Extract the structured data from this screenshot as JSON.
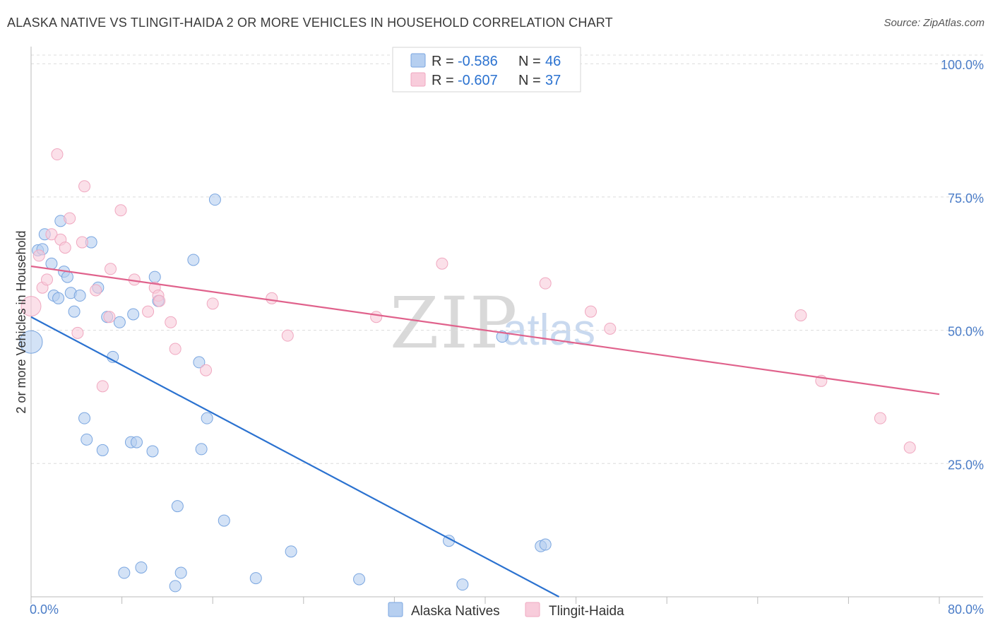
{
  "title": "ALASKA NATIVE VS TLINGIT-HAIDA 2 OR MORE VEHICLES IN HOUSEHOLD CORRELATION CHART",
  "source": "Source: ZipAtlas.com",
  "watermark": {
    "zip": "ZIP",
    "atlas": "atlas"
  },
  "chart_data": {
    "type": "scatter",
    "xlabel": "",
    "ylabel": "2 or more Vehicles in Household",
    "xlim": [
      0,
      80
    ],
    "ylim": [
      0,
      104
    ],
    "x_tick_labels": [
      {
        "value": 0,
        "label": "0.0%"
      },
      {
        "value": 80,
        "label": "80.0%"
      }
    ],
    "y_tick_labels": [
      {
        "value": 25,
        "label": "25.0%"
      },
      {
        "value": 50,
        "label": "50.0%"
      },
      {
        "value": 75,
        "label": "75.0%"
      },
      {
        "value": 100,
        "label": "100.0%"
      }
    ],
    "legend": [
      {
        "series": "Alaska Natives",
        "r_label": "R = ",
        "r_value": "-0.586",
        "n_label": "N = ",
        "n_value": "46"
      },
      {
        "series": "Tlingit-Haida",
        "r_label": "R = ",
        "r_value": "-0.607",
        "n_label": "N = ",
        "n_value": "37"
      }
    ],
    "series": [
      {
        "name": "Alaska Natives",
        "color": "#7aa6e0",
        "fill": "#b6cff0",
        "line_color": "#2b72d0",
        "trend": {
          "x0": 0,
          "y0": 52.5,
          "x1": 46.5,
          "y1": 0
        },
        "points": [
          [
            0.0,
            47.8,
            16
          ],
          [
            0.6,
            65.0,
            8
          ],
          [
            1.2,
            68.0,
            8
          ],
          [
            1.8,
            62.5,
            8
          ],
          [
            2.0,
            56.5,
            8
          ],
          [
            2.4,
            56.0,
            8
          ],
          [
            2.6,
            70.5,
            8
          ],
          [
            2.9,
            61.0,
            8
          ],
          [
            3.2,
            60.0,
            8
          ],
          [
            3.5,
            57.0,
            8
          ],
          [
            3.8,
            53.5,
            8
          ],
          [
            4.3,
            56.5,
            8
          ],
          [
            4.7,
            33.5,
            8
          ],
          [
            4.9,
            29.5,
            8
          ],
          [
            5.3,
            66.5,
            8
          ],
          [
            5.9,
            58.0,
            8
          ],
          [
            6.3,
            27.5,
            8
          ],
          [
            6.7,
            52.5,
            8
          ],
          [
            7.2,
            45.0,
            8
          ],
          [
            7.8,
            51.5,
            8
          ],
          [
            8.2,
            4.5,
            8
          ],
          [
            8.8,
            29.0,
            8
          ],
          [
            9.3,
            29.0,
            8
          ],
          [
            9.0,
            53.0,
            8
          ],
          [
            9.7,
            5.5,
            8
          ],
          [
            10.7,
            27.3,
            8
          ],
          [
            10.9,
            60.0,
            8
          ],
          [
            11.2,
            55.5,
            8
          ],
          [
            12.7,
            2.0,
            8
          ],
          [
            12.9,
            17.0,
            8
          ],
          [
            13.2,
            4.5,
            8
          ],
          [
            14.3,
            63.2,
            8
          ],
          [
            14.8,
            44.0,
            8
          ],
          [
            15.0,
            27.7,
            8
          ],
          [
            15.5,
            33.5,
            8
          ],
          [
            16.2,
            74.5,
            8
          ],
          [
            17.0,
            14.3,
            8
          ],
          [
            19.8,
            3.5,
            8
          ],
          [
            22.9,
            8.5,
            8
          ],
          [
            28.9,
            3.3,
            8
          ],
          [
            36.8,
            10.5,
            8
          ],
          [
            38.0,
            2.3,
            8
          ],
          [
            41.5,
            48.8,
            8
          ],
          [
            44.9,
            9.5,
            8
          ],
          [
            45.3,
            9.8,
            8
          ],
          [
            1.0,
            65.2,
            8
          ]
        ]
      },
      {
        "name": "Tlingit-Haida",
        "color": "#f0a8c0",
        "fill": "#f8ccdb",
        "line_color": "#e0628c",
        "trend": {
          "x0": 0,
          "y0": 62.0,
          "x1": 80,
          "y1": 38.0
        },
        "points": [
          [
            0.0,
            54.5,
            14
          ],
          [
            0.7,
            64.0,
            8
          ],
          [
            1.0,
            58.0,
            8
          ],
          [
            1.4,
            59.5,
            8
          ],
          [
            1.8,
            68.0,
            8
          ],
          [
            2.3,
            83.0,
            8
          ],
          [
            2.6,
            67.0,
            8
          ],
          [
            3.0,
            65.5,
            8
          ],
          [
            3.4,
            71.0,
            8
          ],
          [
            4.1,
            49.5,
            8
          ],
          [
            4.5,
            66.5,
            8
          ],
          [
            4.7,
            77.0,
            8
          ],
          [
            5.7,
            57.5,
            8
          ],
          [
            6.3,
            39.5,
            8
          ],
          [
            6.9,
            52.5,
            8
          ],
          [
            7.0,
            61.5,
            8
          ],
          [
            7.9,
            72.5,
            8
          ],
          [
            9.1,
            59.5,
            8
          ],
          [
            10.3,
            53.5,
            8
          ],
          [
            10.9,
            58.0,
            8
          ],
          [
            11.2,
            56.5,
            8
          ],
          [
            11.3,
            55.5,
            8
          ],
          [
            12.3,
            51.5,
            8
          ],
          [
            12.7,
            46.5,
            8
          ],
          [
            15.4,
            42.5,
            8
          ],
          [
            16.0,
            55.0,
            8
          ],
          [
            21.2,
            56.0,
            8
          ],
          [
            22.6,
            49.0,
            8
          ],
          [
            30.4,
            52.5,
            8
          ],
          [
            36.2,
            62.5,
            8
          ],
          [
            45.3,
            58.8,
            8
          ],
          [
            49.3,
            53.5,
            8
          ],
          [
            51.0,
            50.3,
            8
          ],
          [
            67.8,
            52.8,
            8
          ],
          [
            69.6,
            40.5,
            8
          ],
          [
            74.8,
            33.5,
            8
          ],
          [
            77.4,
            28.0,
            8
          ]
        ]
      }
    ]
  }
}
